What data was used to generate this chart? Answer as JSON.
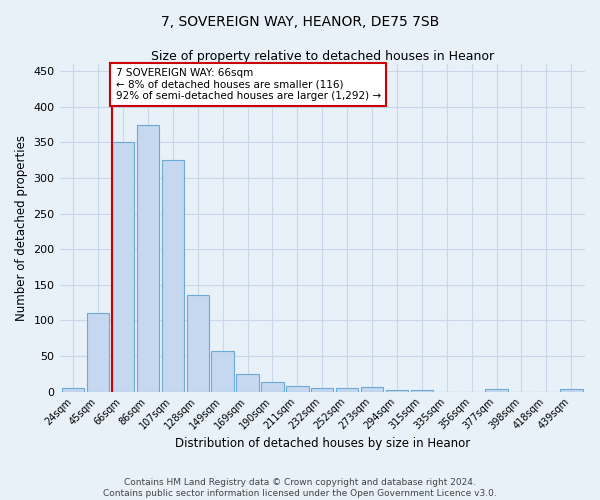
{
  "title": "7, SOVEREIGN WAY, HEANOR, DE75 7SB",
  "subtitle": "Size of property relative to detached houses in Heanor",
  "xlabel": "Distribution of detached houses by size in Heanor",
  "ylabel": "Number of detached properties",
  "categories": [
    "24sqm",
    "45sqm",
    "66sqm",
    "86sqm",
    "107sqm",
    "128sqm",
    "149sqm",
    "169sqm",
    "190sqm",
    "211sqm",
    "232sqm",
    "252sqm",
    "273sqm",
    "294sqm",
    "315sqm",
    "335sqm",
    "356sqm",
    "377sqm",
    "398sqm",
    "418sqm",
    "439sqm"
  ],
  "values": [
    5,
    110,
    350,
    375,
    325,
    135,
    57,
    25,
    13,
    8,
    5,
    5,
    7,
    2,
    2,
    0,
    0,
    3,
    0,
    0,
    3
  ],
  "bar_color": "#c5d8ef",
  "bar_edge_color": "#6aaad4",
  "highlighted_bar_index": 2,
  "highlight_line_color": "#cc0000",
  "annotation_text": "7 SOVEREIGN WAY: 66sqm\n← 8% of detached houses are smaller (116)\n92% of semi-detached houses are larger (1,292) →",
  "annotation_box_color": "#ffffff",
  "annotation_box_edge_color": "#cc0000",
  "ylim": [
    0,
    460
  ],
  "yticks": [
    0,
    50,
    100,
    150,
    200,
    250,
    300,
    350,
    400,
    450
  ],
  "grid_color": "#c8d8e8",
  "background_color": "#e8f0f8",
  "footer_line1": "Contains HM Land Registry data © Crown copyright and database right 2024.",
  "footer_line2": "Contains public sector information licensed under the Open Government Licence v3.0.",
  "title_fontsize": 10,
  "subtitle_fontsize": 9,
  "xlabel_fontsize": 8.5,
  "ylabel_fontsize": 8.5,
  "annotation_fontsize": 7.5,
  "footer_fontsize": 6.5
}
